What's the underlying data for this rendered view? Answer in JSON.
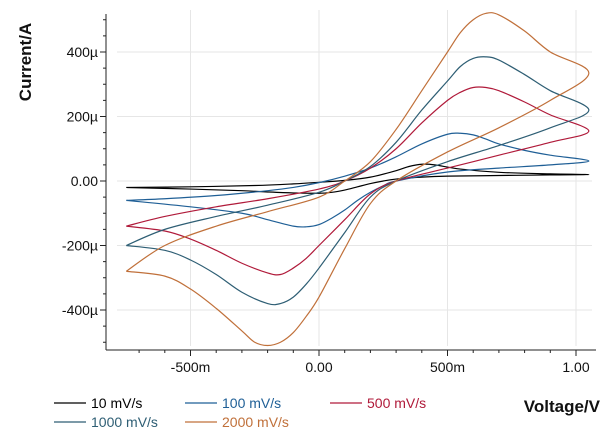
{
  "chart_data": {
    "type": "line",
    "xlabel": "Voltage/V",
    "ylabel": "Current/A",
    "xlim": [
      -0.8,
      1.08
    ],
    "ylim": [
      -0.52,
      0.53
    ],
    "grid": true,
    "legend_position": "bottom-left",
    "x_ticks": [
      {
        "value": -0.5,
        "label": "-500m"
      },
      {
        "value": 0.0,
        "label": "0.00"
      },
      {
        "value": 0.5,
        "label": "500m"
      },
      {
        "value": 1.0,
        "label": "1.00"
      }
    ],
    "y_ticks": [
      {
        "value": 0.4,
        "label": "400µ"
      },
      {
        "value": 0.2,
        "label": "200µ"
      },
      {
        "value": 0.0,
        "label": "0.00"
      },
      {
        "value": -0.2,
        "label": "-200µ"
      },
      {
        "value": -0.4,
        "label": "-400µ"
      }
    ],
    "series": [
      {
        "name": "10 mV/s",
        "color": "#000000",
        "x": [
          -0.75,
          -0.5,
          -0.25,
          -0.1,
          0.0,
          0.1,
          0.2,
          0.3,
          0.35,
          0.4,
          0.45,
          0.55,
          0.7,
          0.9,
          1.05,
          0.9,
          0.7,
          0.5,
          0.4,
          0.3,
          0.25,
          0.2,
          0.15,
          0.1,
          0.05,
          0.0,
          -0.1,
          -0.2,
          -0.3,
          -0.5,
          -0.75
        ],
        "y": [
          -0.02,
          -0.018,
          -0.014,
          -0.009,
          -0.004,
          0.002,
          0.012,
          0.032,
          0.045,
          0.052,
          0.05,
          0.037,
          0.027,
          0.022,
          0.02,
          0.019,
          0.017,
          0.015,
          0.012,
          0.006,
          0.0,
          -0.008,
          -0.018,
          -0.028,
          -0.035,
          -0.038,
          -0.037,
          -0.034,
          -0.03,
          -0.025,
          -0.02
        ]
      },
      {
        "name": "100 mV/s",
        "color": "#1f5f96",
        "x": [
          -0.75,
          -0.6,
          -0.4,
          -0.2,
          -0.1,
          0.0,
          0.1,
          0.2,
          0.3,
          0.4,
          0.5,
          0.55,
          0.6,
          0.65,
          0.7,
          0.8,
          0.9,
          1.05,
          0.9,
          0.7,
          0.5,
          0.3,
          0.25,
          0.2,
          0.15,
          0.1,
          0.05,
          0.0,
          -0.05,
          -0.1,
          -0.2,
          -0.3,
          -0.5,
          -0.75
        ],
        "y": [
          -0.06,
          -0.055,
          -0.045,
          -0.03,
          -0.02,
          -0.005,
          0.015,
          0.04,
          0.075,
          0.115,
          0.145,
          0.148,
          0.143,
          0.13,
          0.115,
          0.095,
          0.08,
          0.062,
          0.05,
          0.04,
          0.028,
          0.0,
          -0.015,
          -0.035,
          -0.06,
          -0.09,
          -0.115,
          -0.135,
          -0.142,
          -0.14,
          -0.12,
          -0.1,
          -0.08,
          -0.06
        ]
      },
      {
        "name": "500 mV/s",
        "color": "#b01a3a",
        "x": [
          -0.75,
          -0.6,
          -0.4,
          -0.2,
          0.0,
          0.1,
          0.2,
          0.3,
          0.4,
          0.5,
          0.55,
          0.6,
          0.65,
          0.7,
          0.8,
          0.9,
          1.05,
          0.9,
          0.7,
          0.5,
          0.3,
          0.2,
          0.1,
          0.0,
          -0.05,
          -0.1,
          -0.15,
          -0.2,
          -0.3,
          -0.4,
          -0.5,
          -0.6,
          -0.75
        ],
        "y": [
          -0.14,
          -0.11,
          -0.08,
          -0.055,
          -0.025,
          0.0,
          0.04,
          0.1,
          0.18,
          0.25,
          0.275,
          0.29,
          0.29,
          0.28,
          0.245,
          0.205,
          0.155,
          0.12,
          0.08,
          0.04,
          0.0,
          -0.04,
          -0.12,
          -0.2,
          -0.24,
          -0.27,
          -0.29,
          -0.285,
          -0.255,
          -0.215,
          -0.18,
          -0.155,
          -0.14
        ]
      },
      {
        "name": "1000 mV/s",
        "color": "#2e5e74",
        "x": [
          -0.75,
          -0.6,
          -0.4,
          -0.2,
          0.0,
          0.1,
          0.2,
          0.3,
          0.4,
          0.5,
          0.55,
          0.6,
          0.65,
          0.7,
          0.8,
          0.9,
          1.05,
          0.9,
          0.7,
          0.5,
          0.3,
          0.2,
          0.1,
          0.0,
          -0.05,
          -0.1,
          -0.15,
          -0.2,
          -0.3,
          -0.4,
          -0.5,
          -0.6,
          -0.75
        ],
        "y": [
          -0.2,
          -0.15,
          -0.11,
          -0.075,
          -0.035,
          0.0,
          0.045,
          0.12,
          0.22,
          0.31,
          0.355,
          0.38,
          0.385,
          0.375,
          0.33,
          0.28,
          0.22,
          0.165,
          0.11,
          0.06,
          0.0,
          -0.05,
          -0.16,
          -0.27,
          -0.32,
          -0.36,
          -0.38,
          -0.38,
          -0.345,
          -0.29,
          -0.245,
          -0.215,
          -0.2
        ]
      },
      {
        "name": "2000 mV/s",
        "color": "#c0703a",
        "x": [
          -0.75,
          -0.6,
          -0.4,
          -0.2,
          0.0,
          0.1,
          0.2,
          0.3,
          0.4,
          0.5,
          0.55,
          0.6,
          0.65,
          0.7,
          0.8,
          0.9,
          1.05,
          0.9,
          0.7,
          0.5,
          0.3,
          0.2,
          0.1,
          0.0,
          -0.05,
          -0.1,
          -0.15,
          -0.2,
          -0.25,
          -0.3,
          -0.4,
          -0.5,
          -0.6,
          -0.75
        ],
        "y": [
          -0.28,
          -0.2,
          -0.14,
          -0.095,
          -0.05,
          0.0,
          0.06,
          0.16,
          0.28,
          0.4,
          0.46,
          0.5,
          0.52,
          0.515,
          0.465,
          0.4,
          0.335,
          0.25,
          0.165,
          0.09,
          0.0,
          -0.07,
          -0.21,
          -0.36,
          -0.42,
          -0.47,
          -0.5,
          -0.51,
          -0.5,
          -0.465,
          -0.395,
          -0.335,
          -0.295,
          -0.28
        ]
      }
    ]
  }
}
